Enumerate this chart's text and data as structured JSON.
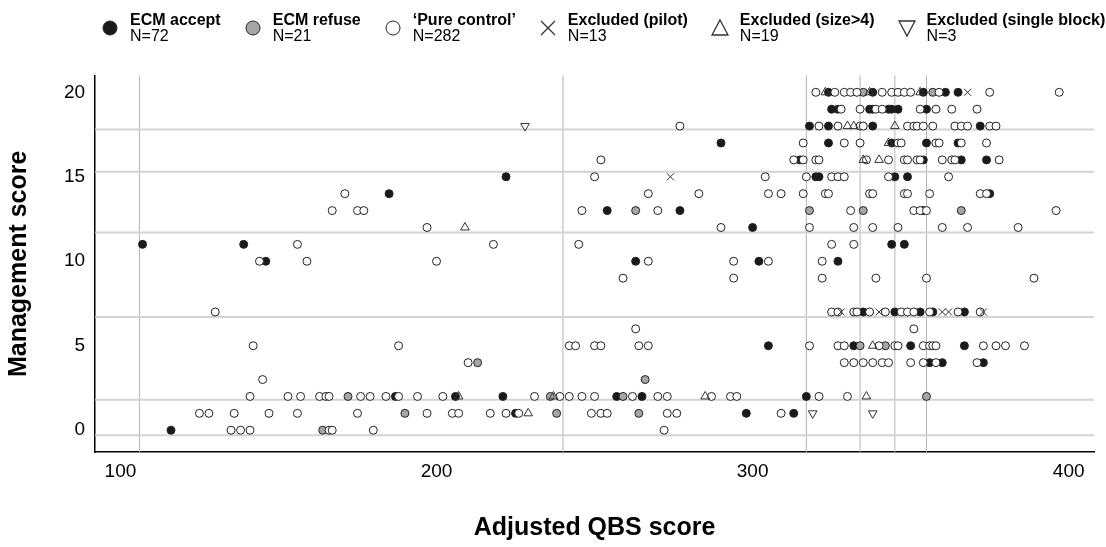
{
  "chart_data": {
    "type": "scatter",
    "xlabel": "Adjusted QBS score",
    "ylabel": "Management score",
    "xlim": [
      92,
      408
    ],
    "ylim": [
      -1.3,
      21
    ],
    "xticks": [
      100,
      200,
      300,
      400
    ],
    "yticks": [
      0,
      5,
      10,
      15,
      20
    ],
    "grid": false,
    "legend": "top",
    "ref_lines": [
      {
        "axis": "x",
        "value": 106,
        "color": "#b3b3b3"
      },
      {
        "axis": "x",
        "value": 240,
        "color": "#b3b3b3"
      },
      {
        "axis": "x",
        "value": 317,
        "color": "#b3b3b3"
      },
      {
        "axis": "x",
        "value": 334,
        "color": "#b3b3b3"
      },
      {
        "axis": "x",
        "value": 345,
        "color": "#b3b3b3"
      },
      {
        "axis": "x",
        "value": 355,
        "color": "#b3b3b3"
      },
      {
        "axis": "y",
        "value": 17.8,
        "color": "#d3d3d3"
      },
      {
        "axis": "y",
        "value": 15.3,
        "color": "#d3d3d3"
      },
      {
        "axis": "y",
        "value": 11.7,
        "color": "#d3d3d3"
      },
      {
        "axis": "y",
        "value": 6.7,
        "color": "#d3d3d3"
      },
      {
        "axis": "y",
        "value": 1.8,
        "color": "#d3d3d3"
      },
      {
        "axis": "y",
        "value": -0.3,
        "color": "#d3d3d3"
      }
    ],
    "series": [
      {
        "name": "ECM accept\nN=72",
        "color": "#1a1a1a",
        "marker": "circle",
        "x": [
          107,
          116,
          139,
          146,
          185,
          187,
          206,
          290,
          222,
          254,
          277,
          300,
          263,
          302,
          305,
          221,
          257,
          265,
          225,
          298,
          313,
          324,
          338,
          354,
          361,
          365,
          325,
          327,
          337,
          338,
          343,
          344,
          346,
          355,
          318,
          324,
          338,
          372,
          324,
          344,
          355,
          365,
          315,
          354,
          366,
          374,
          320,
          321,
          345,
          349,
          375,
          354,
          344,
          348,
          327,
          335,
          345,
          353,
          357,
          367,
          332,
          350,
          367,
          356,
          360,
          373,
          317
        ],
        "values": [
          11,
          0,
          11,
          10,
          14,
          2,
          2,
          17,
          15,
          13,
          13,
          12,
          10,
          10,
          5,
          2,
          2,
          2,
          1,
          1,
          1,
          20,
          20,
          20,
          20,
          20,
          19,
          19,
          19,
          19,
          19,
          19,
          19,
          19,
          18,
          18,
          18,
          18,
          17,
          17,
          17,
          17,
          16,
          16,
          16,
          16,
          15,
          15,
          15,
          15,
          14,
          13,
          11,
          11,
          10,
          7,
          7,
          7,
          7,
          7,
          5,
          5,
          5,
          4,
          4,
          4,
          2
        ]
      },
      {
        "name": "ECM refuse\nN=21",
        "color": "#a6a6a6",
        "marker": "circle",
        "x": [
          172,
          190,
          164,
          263,
          236,
          259,
          238,
          264,
          266,
          213,
          335,
          357,
          318,
          335,
          366,
          334,
          342,
          355
        ],
        "values": [
          2,
          1,
          0,
          13,
          2,
          2,
          1,
          1,
          3,
          4,
          20,
          20,
          13,
          13,
          13,
          5,
          5,
          2
        ]
      },
      {
        "name": "‘Pure control’\nN=282",
        "color": "#ffffff",
        "marker": "circle",
        "x": [
          135,
          138,
          141,
          166,
          167,
          180,
          125,
          128,
          136,
          147,
          156,
          175,
          197,
          205,
          207,
          141,
          153,
          157,
          163,
          165,
          166,
          176,
          179,
          184,
          188,
          194,
          202,
          145,
          142,
          188,
          130,
          144,
          159,
          200,
          156,
          197,
          167,
          175,
          177,
          171,
          277,
          252,
          313,
          250,
          304,
          267,
          283,
          305,
          309,
          246,
          270,
          290,
          218,
          245,
          267,
          294,
          305,
          259,
          294,
          263,
          242,
          244,
          250,
          252,
          264,
          267,
          210,
          231,
          239,
          242,
          246,
          250,
          262,
          270,
          273,
          287,
          293,
          295,
          217,
          222,
          226,
          249,
          252,
          254,
          273,
          276,
          309,
          272,
          320,
          326,
          329,
          331,
          333,
          341,
          344,
          346,
          348,
          350,
          359,
          375,
          397,
          328,
          334,
          339,
          341,
          353,
          358,
          363,
          371,
          321,
          327,
          334,
          335,
          349,
          351,
          352,
          354,
          357,
          364,
          366,
          368,
          375,
          377,
          316,
          329,
          334,
          346,
          347,
          358,
          359,
          366,
          374,
          316,
          320,
          321,
          336,
          343,
          348,
          349,
          352,
          353,
          360,
          363,
          364,
          378,
          317,
          325,
          327,
          329,
          343,
          362,
          316,
          323,
          324,
          337,
          338,
          348,
          349,
          356,
          372,
          374,
          331,
          351,
          353,
          355,
          396,
          318,
          332,
          338,
          346,
          360,
          368,
          384,
          325,
          332,
          322,
          322,
          339,
          355,
          389,
          325,
          327,
          332,
          333,
          337,
          342,
          347,
          349,
          351,
          356,
          365,
          372,
          351,
          318,
          327,
          329,
          340,
          345,
          346,
          354,
          356,
          357,
          358,
          373,
          377,
          380,
          386,
          329,
          332,
          335,
          338,
          341,
          343,
          350,
          354,
          358,
          371,
          321,
          330
        ],
        "values": [
          0,
          0,
          0,
          0,
          0,
          0,
          1,
          1,
          1,
          1,
          1,
          1,
          1,
          1,
          1,
          2,
          2,
          2,
          2,
          2,
          2,
          2,
          2,
          2,
          2,
          2,
          2,
          3,
          5,
          5,
          7,
          10,
          10,
          10,
          11,
          12,
          13,
          13,
          13,
          14,
          18,
          16,
          16,
          15,
          15,
          14,
          14,
          14,
          14,
          13,
          13,
          12,
          11,
          11,
          10,
          10,
          10,
          9,
          9,
          6,
          5,
          5,
          5,
          5,
          5,
          5,
          4,
          2,
          2,
          2,
          2,
          2,
          2,
          2,
          2,
          2,
          2,
          2,
          1,
          1,
          1,
          1,
          1,
          1,
          1,
          1,
          1,
          0,
          20,
          20,
          20,
          20,
          20,
          20,
          20,
          20,
          20,
          20,
          20,
          20,
          20,
          19,
          19,
          19,
          19,
          19,
          19,
          19,
          19,
          18,
          18,
          18,
          18,
          18,
          18,
          18,
          18,
          18,
          18,
          18,
          18,
          18,
          18,
          17,
          17,
          17,
          17,
          17,
          17,
          17,
          17,
          17,
          16,
          16,
          16,
          16,
          16,
          16,
          16,
          16,
          16,
          16,
          16,
          16,
          16,
          15,
          15,
          15,
          15,
          15,
          15,
          14,
          14,
          14,
          14,
          14,
          14,
          14,
          14,
          14,
          14,
          13,
          13,
          13,
          13,
          13,
          12,
          12,
          12,
          12,
          12,
          12,
          12,
          11,
          11,
          10,
          9,
          9,
          9,
          9,
          7,
          7,
          7,
          7,
          7,
          7,
          7,
          7,
          7,
          7,
          7,
          7,
          6,
          5,
          5,
          5,
          5,
          5,
          5,
          5,
          5,
          5,
          5,
          5,
          5,
          5,
          5,
          4,
          4,
          4,
          4,
          4,
          4,
          4,
          4,
          4,
          4,
          2,
          2
        ]
      },
      {
        "name": "Excluded (pilot)\nN=13",
        "color": "#333333",
        "marker": "cross",
        "x": [
          274,
          368,
          328,
          340,
          360,
          362,
          373
        ],
        "values": [
          15,
          20,
          7,
          7,
          7,
          7,
          7
        ]
      },
      {
        "name": "Excluded (size>4)\nN=19",
        "color": "#333333",
        "marker": "triangle",
        "x": [
          209,
          207,
          237,
          229,
          285,
          323,
          337,
          353,
          330,
          332,
          345,
          343,
          335,
          340,
          338,
          336
        ],
        "values": [
          12,
          2,
          2,
          1,
          2,
          20,
          20,
          20,
          18,
          18,
          18,
          17,
          16,
          16,
          5,
          2
        ]
      },
      {
        "name": "Excluded (single block)\nN=3",
        "color": "#333333",
        "marker": "triangle-down",
        "x": [
          228,
          319,
          338
        ],
        "values": [
          18,
          1,
          1
        ]
      }
    ]
  }
}
